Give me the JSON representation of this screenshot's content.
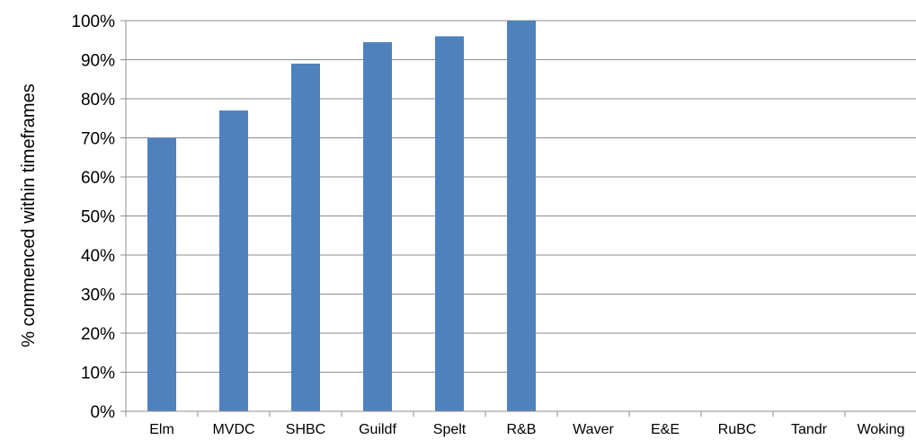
{
  "chart_data": {
    "type": "bar",
    "title": "",
    "xlabel": "",
    "ylabel": "% commenced within timeframes",
    "ylim": [
      0,
      100
    ],
    "yticks": [
      "0%",
      "10%",
      "20%",
      "30%",
      "40%",
      "50%",
      "60%",
      "70%",
      "80%",
      "90%",
      "100%"
    ],
    "categories": [
      "Elm",
      "MVDC",
      "SHBC",
      "Guildf",
      "Spelt",
      "R&B",
      "Waver",
      "E&E",
      "RuBC",
      "Tandr",
      "Woking"
    ],
    "values": [
      70,
      77,
      89,
      94.5,
      96,
      100,
      null,
      null,
      null,
      null,
      null
    ],
    "bar_color": "#4f81bd",
    "grid": true,
    "legend": "none"
  }
}
